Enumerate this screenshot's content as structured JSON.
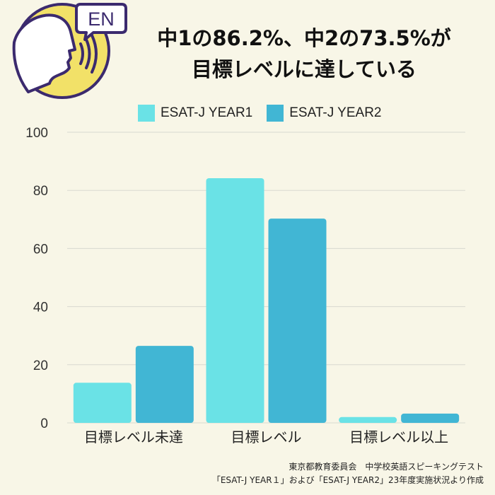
{
  "badge": {
    "text": "EN"
  },
  "title": {
    "line1": "中1の86.2%、中2の73.5%が",
    "line2": "目標レベルに達している"
  },
  "colors": {
    "year1": "#6ae2e6",
    "year2": "#41b6d4",
    "logo_yellow": "#f2e168",
    "logo_purple": "#3b2a6e",
    "grid": "#d9d9d0"
  },
  "chart_data": {
    "type": "bar",
    "categories": [
      "目標レベル未達",
      "目標レベル",
      "目標レベル以上"
    ],
    "series": [
      {
        "name": "ESAT-J YEAR1",
        "values": [
          13.8,
          84.2,
          2.0
        ]
      },
      {
        "name": "ESAT-J YEAR2",
        "values": [
          26.5,
          70.3,
          3.2
        ]
      }
    ],
    "yticks": [
      0,
      20,
      40,
      60,
      80,
      100
    ],
    "ylim": [
      0,
      100
    ],
    "grid": true,
    "legend": "top"
  },
  "source": {
    "line1": "東京都教育委員会　中学校英語スピーキングテスト",
    "line2": "「ESAT-J YEAR１」および「ESAT-J YEAR2」23年度実施状況より作成"
  }
}
